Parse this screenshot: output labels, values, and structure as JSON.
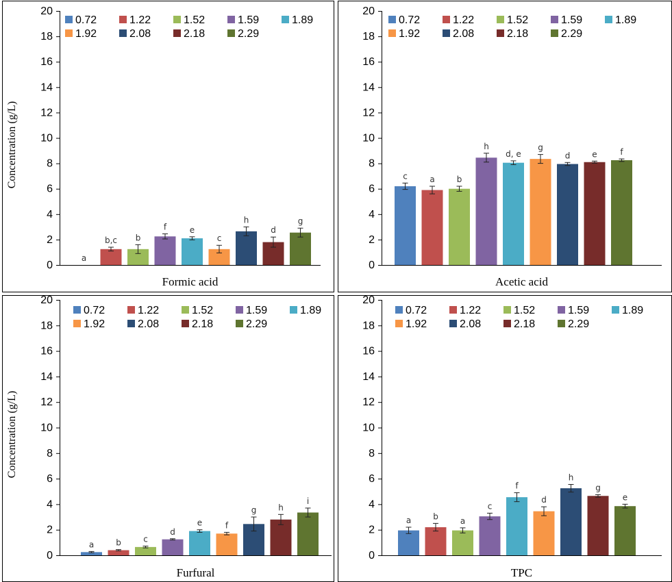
{
  "legend": [
    "0.72",
    "1.22",
    "1.52",
    "1.59",
    "1.89",
    "1.92",
    "2.08",
    "2.18",
    "2.29"
  ],
  "colors": [
    "#4f81bd",
    "#c0504d",
    "#9bbb59",
    "#8064a2",
    "#4bacc6",
    "#f79646",
    "#2c4d75",
    "#772c2a",
    "#5f7530"
  ],
  "chart_data": [
    {
      "type": "bar",
      "xlabel": "Formic acid",
      "ylabel": "Concentration  (g/L)",
      "ylim": [
        0,
        20
      ],
      "yticks": [
        0,
        2,
        4,
        6,
        8,
        10,
        12,
        14,
        16,
        18,
        20
      ],
      "legend_position": "top",
      "series": [
        {
          "name": "0.72",
          "value": 0,
          "error": 0,
          "label": "a"
        },
        {
          "name": "1.22",
          "value": 1.25,
          "error": 0.15,
          "label": "b,c"
        },
        {
          "name": "1.52",
          "value": 1.25,
          "error": 0.35,
          "label": "b"
        },
        {
          "name": "1.59",
          "value": 2.25,
          "error": 0.2,
          "label": "f"
        },
        {
          "name": "1.89",
          "value": 2.1,
          "error": 0.12,
          "label": "e"
        },
        {
          "name": "1.92",
          "value": 1.25,
          "error": 0.3,
          "label": "c"
        },
        {
          "name": "2.08",
          "value": 2.65,
          "error": 0.35,
          "label": "h"
        },
        {
          "name": "2.18",
          "value": 1.8,
          "error": 0.4,
          "label": "d"
        },
        {
          "name": "2.29",
          "value": 2.55,
          "error": 0.35,
          "label": "g"
        }
      ]
    },
    {
      "type": "bar",
      "xlabel": "Acetic acid",
      "ylabel": "",
      "ylim": [
        0,
        20
      ],
      "yticks": [
        0,
        2,
        4,
        6,
        8,
        10,
        12,
        14,
        16,
        18,
        20
      ],
      "legend_position": "top",
      "series": [
        {
          "name": "0.72",
          "value": 6.2,
          "error": 0.25,
          "label": "c"
        },
        {
          "name": "1.22",
          "value": 5.9,
          "error": 0.3,
          "label": "a"
        },
        {
          "name": "1.52",
          "value": 6.0,
          "error": 0.2,
          "label": "b"
        },
        {
          "name": "1.59",
          "value": 8.45,
          "error": 0.35,
          "label": "h"
        },
        {
          "name": "1.89",
          "value": 8.05,
          "error": 0.15,
          "label": "d, e"
        },
        {
          "name": "1.92",
          "value": 8.35,
          "error": 0.35,
          "label": "g"
        },
        {
          "name": "2.08",
          "value": 7.95,
          "error": 0.12,
          "label": "d"
        },
        {
          "name": "2.18",
          "value": 8.1,
          "error": 0.08,
          "label": "e"
        },
        {
          "name": "2.29",
          "value": 8.25,
          "error": 0.1,
          "label": "f"
        }
      ]
    },
    {
      "type": "bar",
      "xlabel": "Furfural",
      "ylabel": "Concentration  (g/L)",
      "ylim": [
        0,
        20
      ],
      "yticks": [
        0,
        2,
        4,
        6,
        8,
        10,
        12,
        14,
        16,
        18,
        20
      ],
      "legend_position": "top",
      "series": [
        {
          "name": "0.72",
          "value": 0.25,
          "error": 0.05,
          "label": "a"
        },
        {
          "name": "1.22",
          "value": 0.4,
          "error": 0.05,
          "label": "b"
        },
        {
          "name": "1.52",
          "value": 0.65,
          "error": 0.07,
          "label": "c"
        },
        {
          "name": "1.59",
          "value": 1.25,
          "error": 0.05,
          "label": "d"
        },
        {
          "name": "1.89",
          "value": 1.9,
          "error": 0.1,
          "label": "e"
        },
        {
          "name": "1.92",
          "value": 1.7,
          "error": 0.1,
          "label": "f"
        },
        {
          "name": "2.08",
          "value": 2.45,
          "error": 0.55,
          "label": "g"
        },
        {
          "name": "2.18",
          "value": 2.8,
          "error": 0.4,
          "label": "h"
        },
        {
          "name": "2.29",
          "value": 3.35,
          "error": 0.35,
          "label": "i"
        }
      ]
    },
    {
      "type": "bar",
      "xlabel": "TPC",
      "ylabel": "",
      "ylim": [
        0,
        20
      ],
      "yticks": [
        0,
        2,
        4,
        6,
        8,
        10,
        12,
        14,
        16,
        18,
        20
      ],
      "legend_position": "top",
      "series": [
        {
          "name": "0.72",
          "value": 1.95,
          "error": 0.25,
          "label": "a"
        },
        {
          "name": "1.22",
          "value": 2.2,
          "error": 0.3,
          "label": "b"
        },
        {
          "name": "1.52",
          "value": 1.95,
          "error": 0.2,
          "label": "a"
        },
        {
          "name": "1.59",
          "value": 3.05,
          "error": 0.25,
          "label": "c"
        },
        {
          "name": "1.89",
          "value": 4.55,
          "error": 0.35,
          "label": "f"
        },
        {
          "name": "1.92",
          "value": 3.45,
          "error": 0.35,
          "label": "d"
        },
        {
          "name": "2.08",
          "value": 5.25,
          "error": 0.3,
          "label": "h"
        },
        {
          "name": "2.18",
          "value": 4.65,
          "error": 0.1,
          "label": "g"
        },
        {
          "name": "2.29",
          "value": 3.85,
          "error": 0.15,
          "label": "e"
        }
      ]
    }
  ]
}
